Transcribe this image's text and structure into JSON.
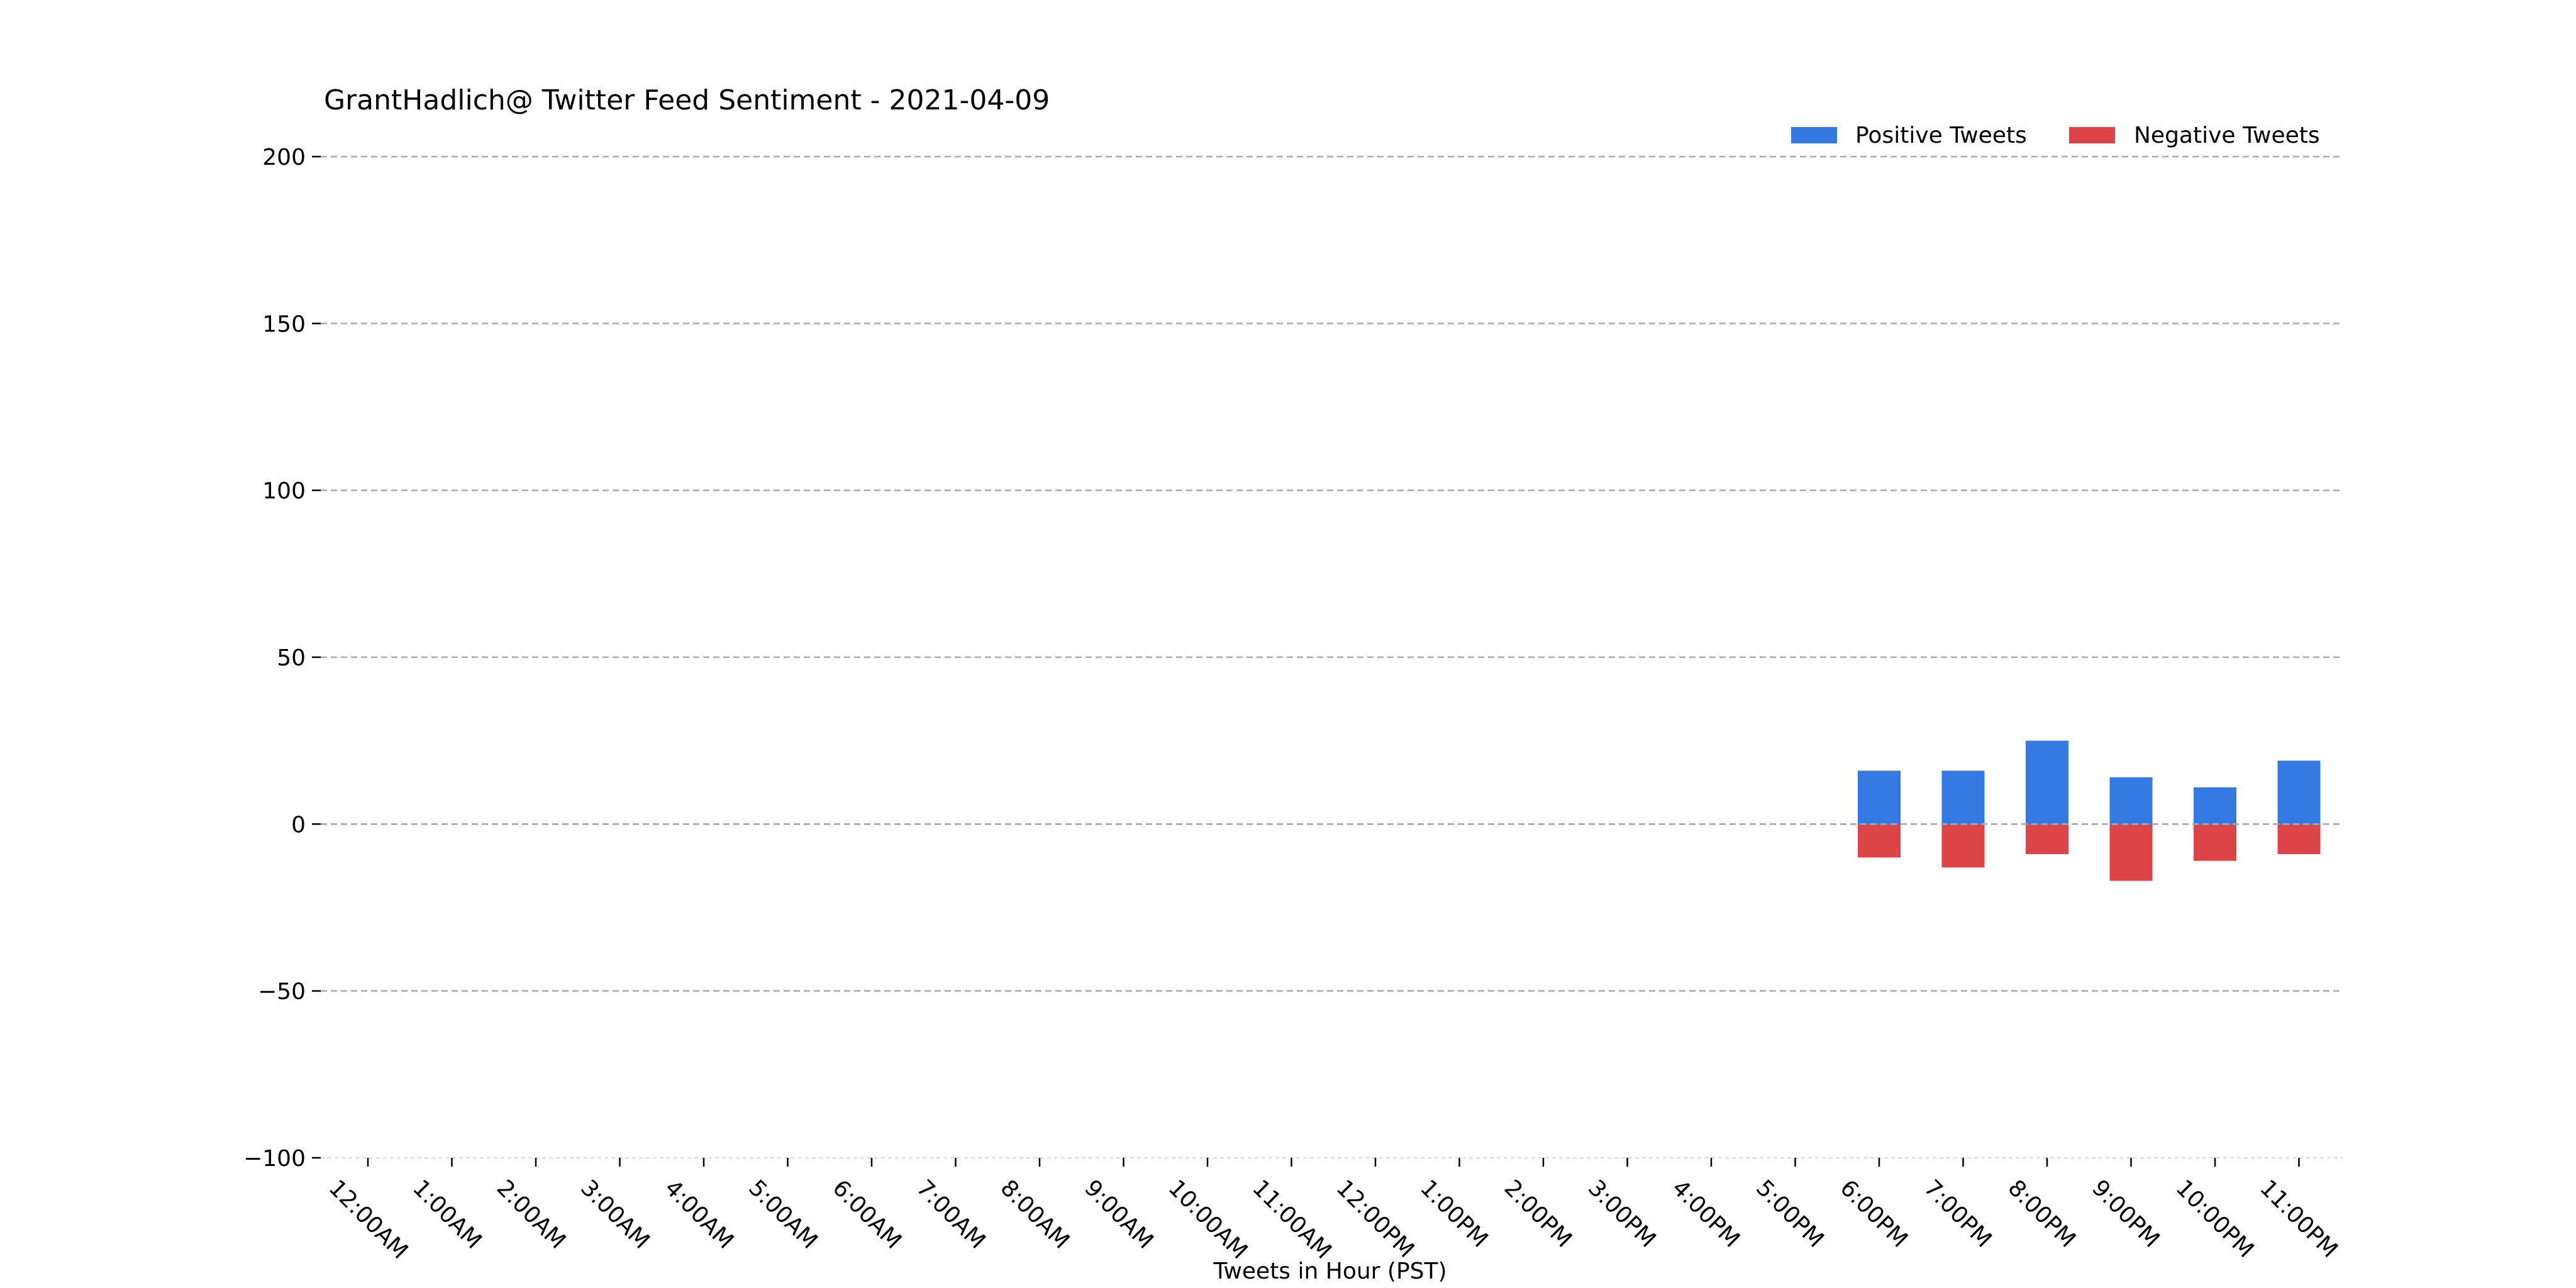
{
  "chart_data": {
    "type": "bar",
    "title": "GrantHadlich@ Twitter Feed Sentiment - 2021-04-09",
    "xlabel": "Tweets in Hour (PST)",
    "ylabel": "",
    "ylim": [
      -100,
      200
    ],
    "yticks": [
      200,
      150,
      100,
      50,
      0,
      -50,
      -100
    ],
    "ytick_labels": [
      "200",
      "150",
      "100",
      "50",
      "0",
      "−50",
      "−100"
    ],
    "grid": "y dashed",
    "legend_position": "top-right",
    "stacked": true,
    "categories": [
      "12:00AM",
      "1:00AM",
      "2:00AM",
      "3:00AM",
      "4:00AM",
      "5:00AM",
      "6:00AM",
      "7:00AM",
      "8:00AM",
      "9:00AM",
      "10:00AM",
      "11:00AM",
      "12:00PM",
      "1:00PM",
      "2:00PM",
      "3:00PM",
      "4:00PM",
      "5:00PM",
      "6:00PM",
      "7:00PM",
      "8:00PM",
      "9:00PM",
      "10:00PM",
      "11:00PM"
    ],
    "series": [
      {
        "name": "Positive Tweets",
        "color": "#3579e3",
        "values": [
          0,
          0,
          0,
          0,
          0,
          0,
          0,
          0,
          0,
          0,
          0,
          0,
          0,
          0,
          0,
          0,
          0,
          0,
          16,
          16,
          25,
          14,
          11,
          19
        ]
      },
      {
        "name": "Negative Tweets",
        "color": "#dd4447",
        "values": [
          0,
          0,
          0,
          0,
          0,
          0,
          0,
          0,
          0,
          0,
          0,
          0,
          0,
          0,
          0,
          0,
          0,
          0,
          -10,
          -13,
          -9,
          -17,
          -11,
          -9
        ]
      }
    ]
  }
}
